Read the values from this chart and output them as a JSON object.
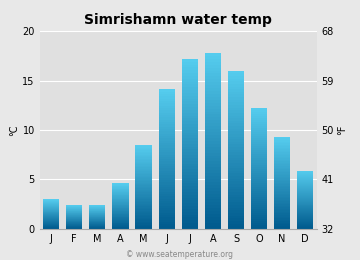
{
  "title": "Simrishamn water temp",
  "months": [
    "J",
    "F",
    "M",
    "A",
    "M",
    "J",
    "J",
    "A",
    "S",
    "O",
    "N",
    "D"
  ],
  "temps_c": [
    3.0,
    2.4,
    2.4,
    4.6,
    8.5,
    14.1,
    17.2,
    17.8,
    16.0,
    12.2,
    9.3,
    5.9
  ],
  "ylim_c": [
    0,
    20
  ],
  "yticks_c": [
    0,
    5,
    10,
    15,
    20
  ],
  "yticks_f": [
    32,
    41,
    50,
    59,
    68
  ],
  "ylabel_left": "°C",
  "ylabel_right": "°F",
  "bar_color_top": "#55ccee",
  "bar_color_bottom": "#005b8e",
  "bg_color": "#e8e8e8",
  "plot_bg": "#e0e0e0",
  "title_fontsize": 10,
  "axis_fontsize": 7,
  "tick_fontsize": 7,
  "watermark": "© www.seatemperature.org"
}
